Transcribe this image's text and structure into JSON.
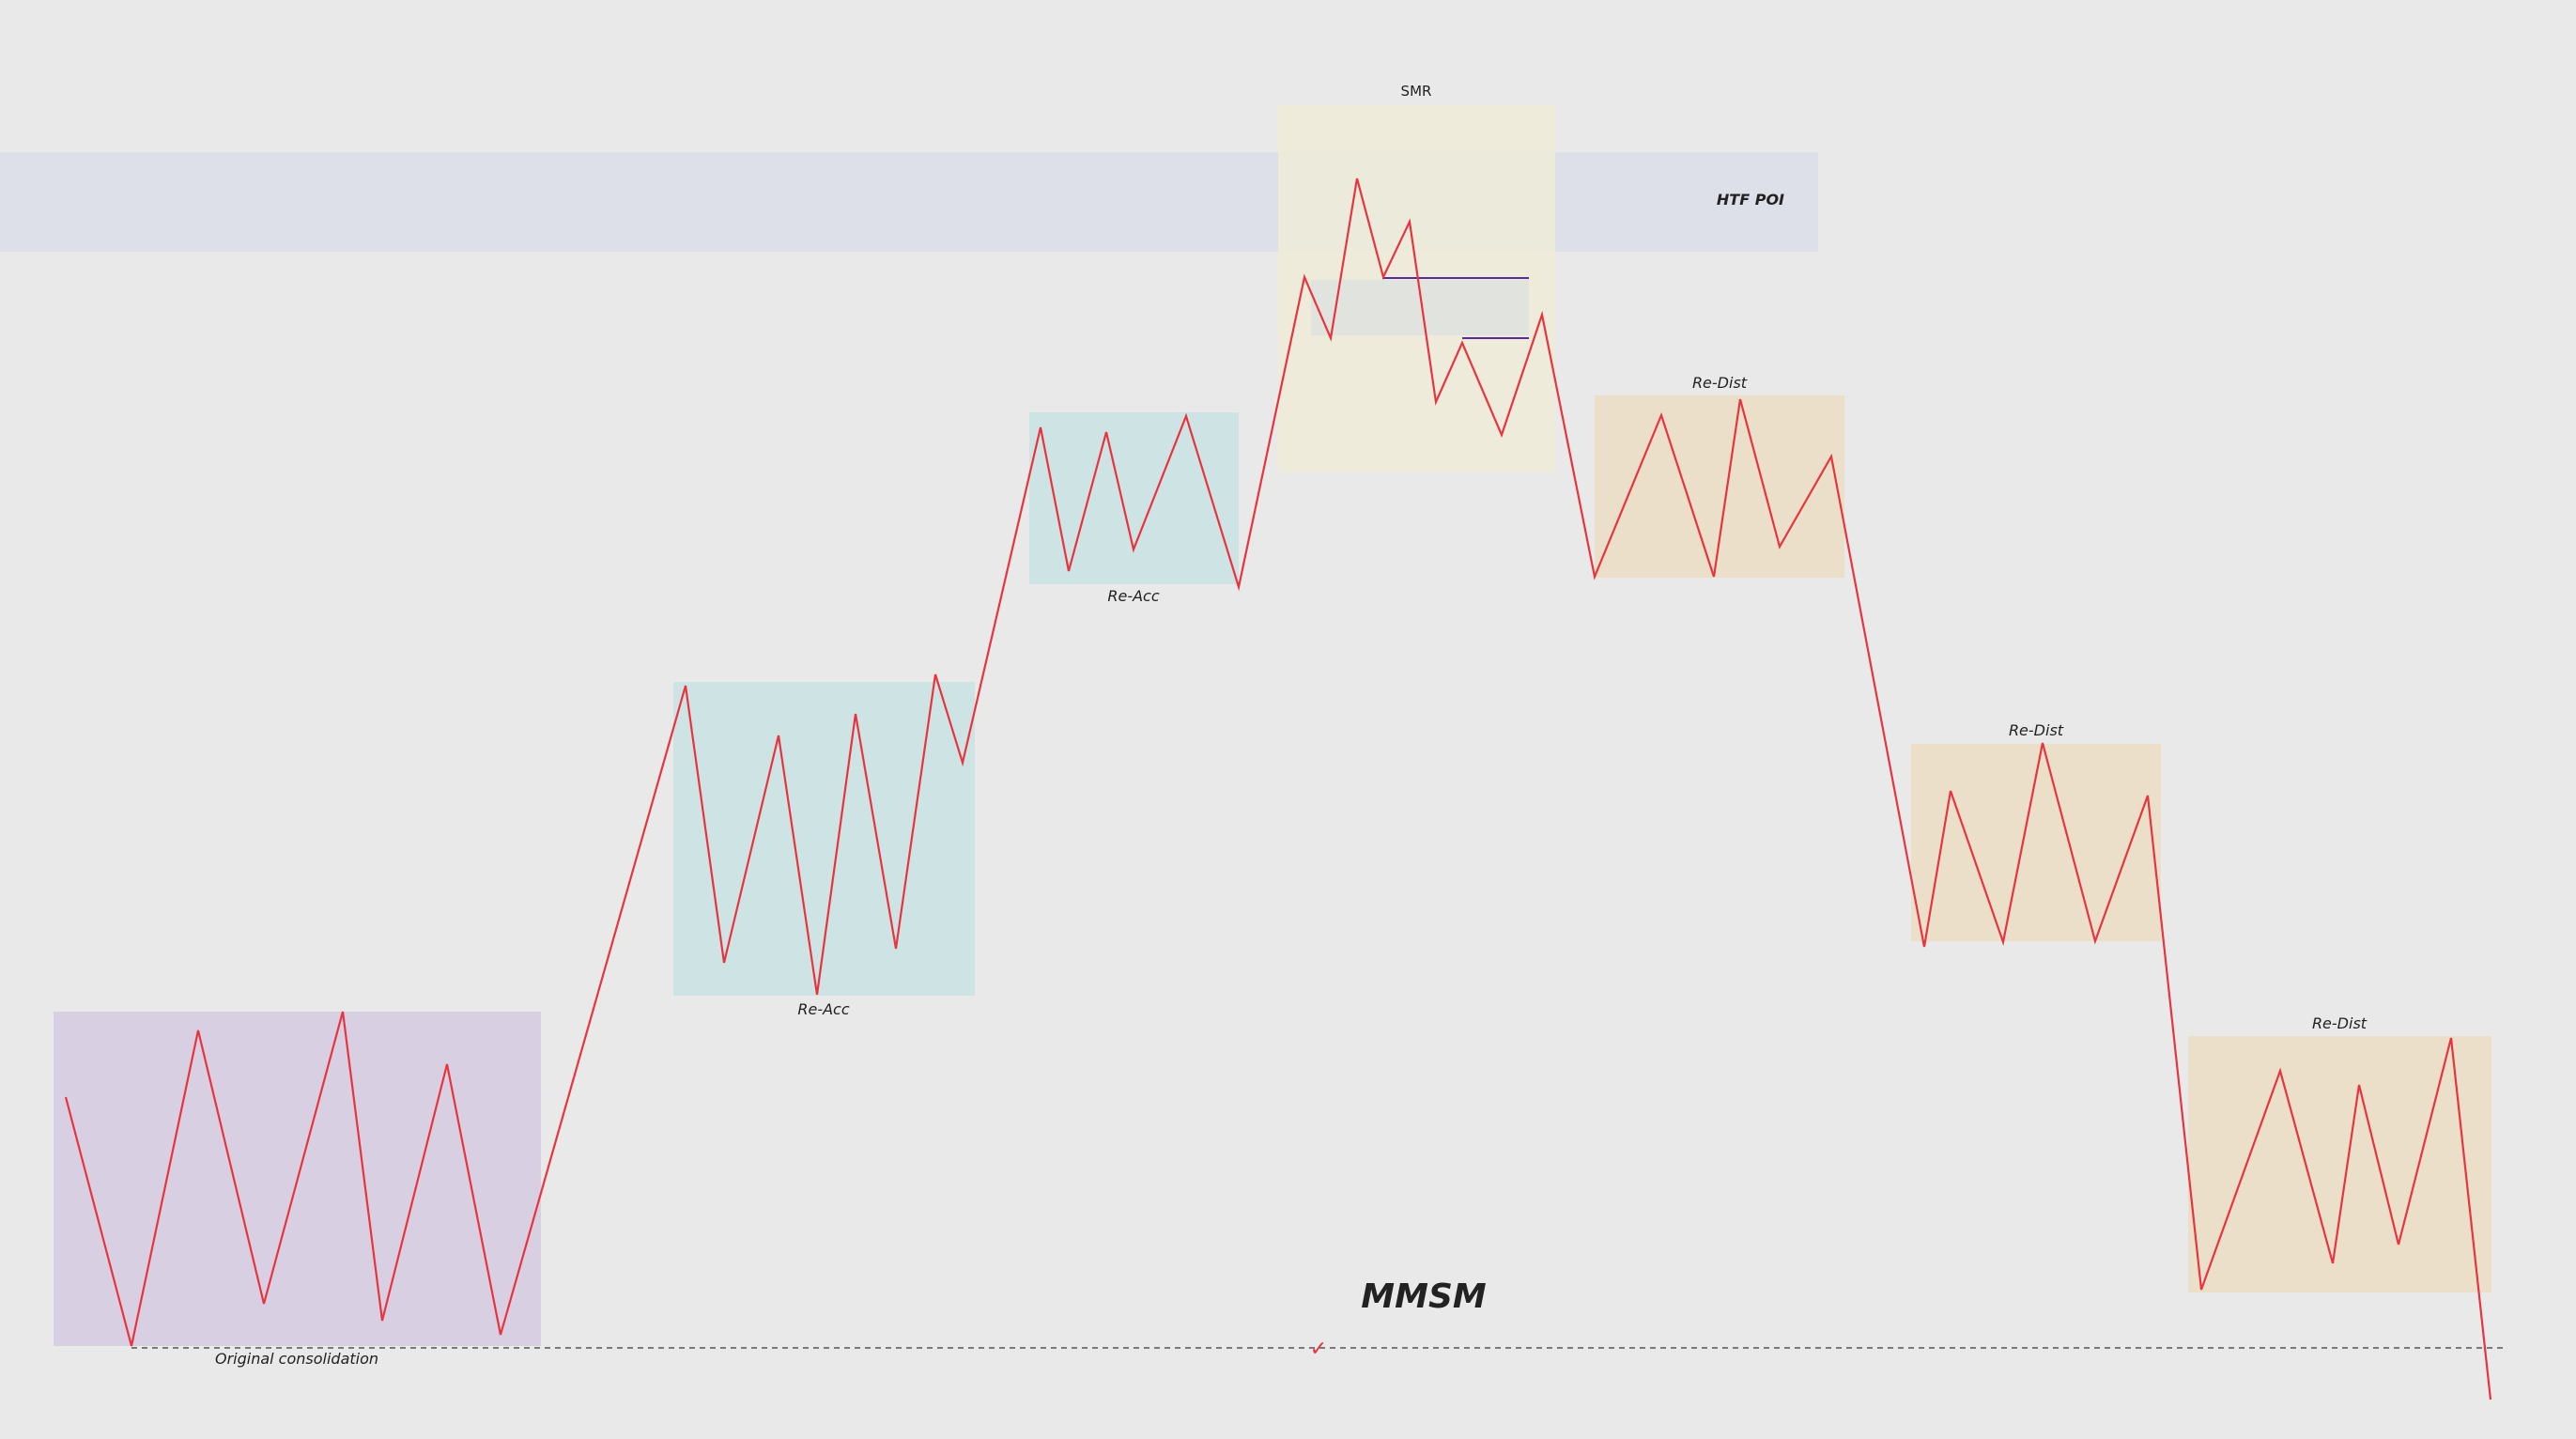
{
  "title": "MMSM",
  "colors": {
    "background": "#e9e9e9",
    "price_line": "#e8343f",
    "consolidation": "#d8cfe2",
    "reaccumulation": "#cde3e4",
    "smr": "#efebd8",
    "redistribution": "#ecdfca",
    "htf_poi": "#dde0e9",
    "liquidity_line": "#5a2d9a",
    "baseline": "#555555"
  },
  "zones": [
    {
      "id": "htf-poi",
      "label": "HTF POI",
      "type": "htf-poi"
    },
    {
      "id": "original-consolidation",
      "label": "Original consolidation",
      "type": "consolidation"
    },
    {
      "id": "re-acc-1",
      "label": "Re-Acc",
      "type": "reaccumulation"
    },
    {
      "id": "re-acc-2",
      "label": "Re-Acc",
      "type": "reaccumulation"
    },
    {
      "id": "smr",
      "label": "SMR",
      "type": "smr"
    },
    {
      "id": "re-dist-1",
      "label": "Re-Dist",
      "type": "redistribution"
    },
    {
      "id": "re-dist-2",
      "label": "Re-Dist",
      "type": "redistribution"
    },
    {
      "id": "re-dist-3",
      "label": "Re-Dist",
      "type": "redistribution"
    }
  ],
  "baseline_marker": "✓"
}
